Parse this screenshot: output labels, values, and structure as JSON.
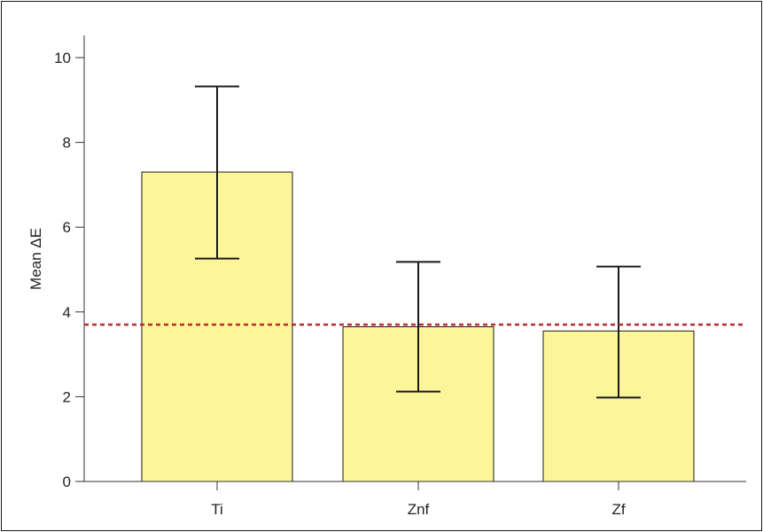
{
  "chart_data": {
    "type": "bar",
    "title": "",
    "xlabel": "",
    "ylabel": "Mean ΔE",
    "ylim": [
      0,
      10.5
    ],
    "yticks": [
      0,
      2,
      4,
      6,
      8,
      10
    ],
    "categories": [
      "Ti",
      "Znf",
      "Zf"
    ],
    "values": [
      7.3,
      3.65,
      3.55
    ],
    "error": {
      "upper": [
        9.32,
        5.18,
        5.07
      ],
      "lower": [
        5.26,
        2.12,
        1.98
      ]
    },
    "reference_line": {
      "value": 3.7,
      "style": "dotted",
      "color": "#c0282d"
    },
    "colors": {
      "bar_fill": "#fdf59a",
      "bar_stroke": "#1a1a1a",
      "axis": "#333333"
    },
    "grid": false,
    "legend": "none"
  }
}
